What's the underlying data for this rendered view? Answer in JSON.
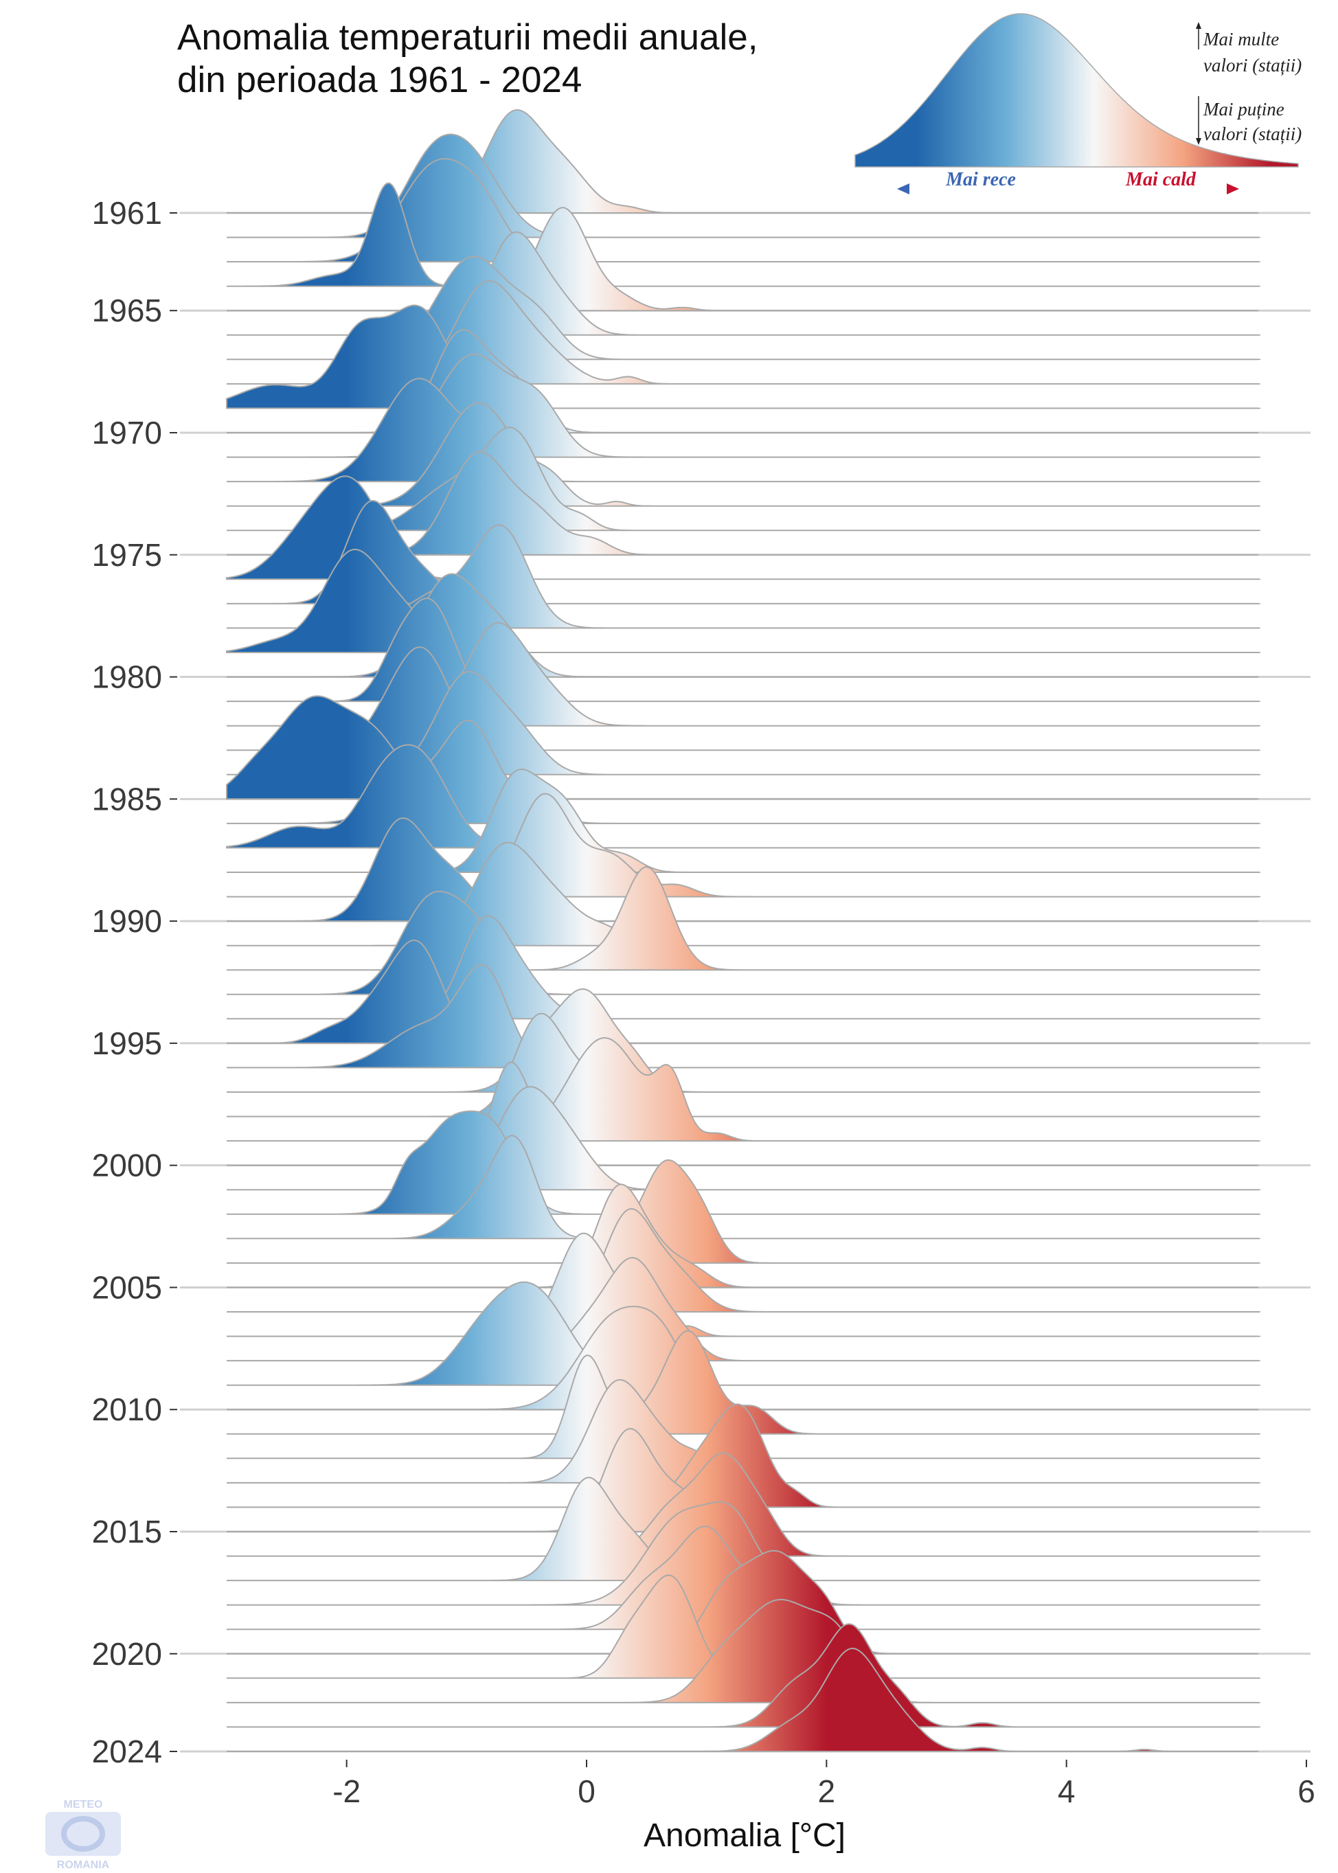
{
  "chart_data": {
    "type": "ridgeline",
    "title_lines": [
      "Anomalia temperaturii medii anuale,",
      "din perioada 1961 - 2024"
    ],
    "xlabel": "Anomalia [°C]",
    "ylabel": "",
    "xlim": [
      -3.0,
      6.0
    ],
    "x_ticks": [
      -2,
      0,
      2,
      4,
      6
    ],
    "y_tick_labels": [
      "1961",
      "1965",
      "1970",
      "1975",
      "1980",
      "1985",
      "1990",
      "1995",
      "2000",
      "2005",
      "2010",
      "2015",
      "2020",
      "2024"
    ],
    "y_tick_years": [
      1961,
      1965,
      1970,
      1975,
      1980,
      1985,
      1990,
      1995,
      2000,
      2005,
      2010,
      2015,
      2020,
      2024
    ],
    "color_scale": {
      "domain": [
        -2.0,
        -1.0,
        0.0,
        1.0,
        2.0
      ],
      "colors": [
        "#2166ac",
        "#6baed6",
        "#f7f7f7",
        "#f4a582",
        "#b2182b"
      ]
    },
    "grid": true,
    "series": [
      {
        "year": 1961,
        "peaks": [
          [
            -0.6,
            0.24,
            1.0
          ],
          [
            -0.15,
            0.2,
            0.35
          ],
          [
            0.35,
            0.12,
            0.05
          ]
        ]
      },
      {
        "year": 1962,
        "peaks": [
          [
            -1.0,
            0.27,
            0.85
          ],
          [
            -1.35,
            0.22,
            0.5
          ]
        ]
      },
      {
        "year": 1963,
        "peaks": [
          [
            -1.25,
            0.3,
            0.85
          ],
          [
            -0.85,
            0.2,
            0.3
          ]
        ]
      },
      {
        "year": 1964,
        "peaks": [
          [
            -1.65,
            0.15,
            0.95
          ],
          [
            -2.1,
            0.2,
            0.1
          ]
        ]
      },
      {
        "year": 1965,
        "peaks": [
          [
            -0.2,
            0.22,
            1.0
          ],
          [
            0.3,
            0.15,
            0.1
          ],
          [
            0.8,
            0.1,
            0.03
          ]
        ]
      },
      {
        "year": 1966,
        "peaks": [
          [
            -0.6,
            0.22,
            1.0
          ],
          [
            -0.2,
            0.18,
            0.25
          ]
        ]
      },
      {
        "year": 1967,
        "peaks": [
          [
            -0.95,
            0.3,
            0.9
          ],
          [
            -0.4,
            0.2,
            0.3
          ]
        ]
      },
      {
        "year": 1968,
        "peaks": [
          [
            -0.85,
            0.25,
            0.7
          ],
          [
            -0.4,
            0.25,
            0.25
          ],
          [
            0.35,
            0.1,
            0.05
          ]
        ]
      },
      {
        "year": 1969,
        "peaks": [
          [
            -1.4,
            0.25,
            0.85
          ],
          [
            -1.9,
            0.2,
            0.6
          ],
          [
            -2.6,
            0.3,
            0.2
          ]
        ]
      },
      {
        "year": 1970,
        "peaks": [
          [
            -1.05,
            0.22,
            0.85
          ],
          [
            -0.6,
            0.2,
            0.4
          ]
        ]
      },
      {
        "year": 1971,
        "peaks": [
          [
            -0.95,
            0.3,
            0.75
          ],
          [
            -0.4,
            0.2,
            0.35
          ]
        ]
      },
      {
        "year": 1972,
        "peaks": [
          [
            -1.4,
            0.3,
            0.9
          ],
          [
            -0.8,
            0.2,
            0.3
          ]
        ]
      },
      {
        "year": 1973,
        "peaks": [
          [
            -0.9,
            0.3,
            0.7
          ],
          [
            -0.3,
            0.15,
            0.15
          ],
          [
            0.25,
            0.08,
            0.03
          ]
        ]
      },
      {
        "year": 1974,
        "peaks": [
          [
            -0.6,
            0.23,
            0.9
          ],
          [
            -1.1,
            0.3,
            0.45
          ],
          [
            -0.05,
            0.12,
            0.12
          ]
        ]
      },
      {
        "year": 1975,
        "peaks": [
          [
            -0.9,
            0.25,
            0.85
          ],
          [
            -0.4,
            0.2,
            0.3
          ],
          [
            0.05,
            0.15,
            0.12
          ]
        ]
      },
      {
        "year": 1976,
        "peaks": [
          [
            -1.95,
            0.25,
            1.0
          ],
          [
            -2.35,
            0.25,
            0.45
          ]
        ]
      },
      {
        "year": 1977,
        "peaks": [
          [
            -1.8,
            0.2,
            1.0
          ],
          [
            -1.4,
            0.2,
            0.3
          ]
        ]
      },
      {
        "year": 1978,
        "peaks": [
          [
            -0.7,
            0.22,
            0.9
          ],
          [
            -1.2,
            0.3,
            0.35
          ]
        ]
      },
      {
        "year": 1979,
        "peaks": [
          [
            -1.95,
            0.25,
            1.0
          ],
          [
            -1.5,
            0.2,
            0.3
          ],
          [
            -2.6,
            0.2,
            0.1
          ]
        ]
      },
      {
        "year": 1980,
        "peaks": [
          [
            -1.15,
            0.25,
            0.9
          ],
          [
            -0.7,
            0.2,
            0.35
          ]
        ]
      },
      {
        "year": 1981,
        "peaks": [
          [
            -1.3,
            0.2,
            0.9
          ],
          [
            -1.6,
            0.15,
            0.3
          ]
        ]
      },
      {
        "year": 1982,
        "peaks": [
          [
            -0.75,
            0.25,
            0.85
          ],
          [
            -0.3,
            0.2,
            0.2
          ]
        ]
      },
      {
        "year": 1983,
        "peaks": [
          [
            -1.35,
            0.22,
            0.85
          ],
          [
            -1.65,
            0.2,
            0.25
          ]
        ]
      },
      {
        "year": 1984,
        "peaks": [
          [
            -1.0,
            0.25,
            0.9
          ],
          [
            -0.55,
            0.2,
            0.3
          ]
        ]
      },
      {
        "year": 1985,
        "peaks": [
          [
            -2.3,
            0.25,
            1.0
          ],
          [
            -1.8,
            0.25,
            0.7
          ],
          [
            -2.75,
            0.2,
            0.3
          ]
        ]
      },
      {
        "year": 1986,
        "peaks": [
          [
            -0.95,
            0.2,
            0.9
          ],
          [
            -1.35,
            0.3,
            0.5
          ],
          [
            -0.5,
            0.2,
            0.2
          ]
        ]
      },
      {
        "year": 1987,
        "peaks": [
          [
            -1.4,
            0.25,
            0.85
          ],
          [
            -1.75,
            0.2,
            0.4
          ],
          [
            -2.4,
            0.25,
            0.2
          ]
        ]
      },
      {
        "year": 1988,
        "peaks": [
          [
            -0.6,
            0.2,
            0.85
          ],
          [
            -0.2,
            0.2,
            0.6
          ],
          [
            0.3,
            0.15,
            0.15
          ]
        ]
      },
      {
        "year": 1989,
        "peaks": [
          [
            -0.35,
            0.22,
            0.9
          ],
          [
            0.2,
            0.2,
            0.35
          ],
          [
            0.75,
            0.15,
            0.1
          ]
        ]
      },
      {
        "year": 1990,
        "peaks": [
          [
            -1.55,
            0.22,
            1.0
          ],
          [
            -1.1,
            0.2,
            0.4
          ]
        ]
      },
      {
        "year": 1991,
        "peaks": [
          [
            -0.7,
            0.25,
            0.85
          ],
          [
            -0.25,
            0.25,
            0.35
          ],
          [
            0.2,
            0.15,
            0.1
          ]
        ]
      },
      {
        "year": 1992,
        "peaks": [
          [
            0.5,
            0.2,
            1.0
          ],
          [
            0.05,
            0.15,
            0.1
          ]
        ]
      },
      {
        "year": 1993,
        "peaks": [
          [
            -1.3,
            0.25,
            0.85
          ],
          [
            -0.9,
            0.2,
            0.45
          ]
        ]
      },
      {
        "year": 1994,
        "peaks": [
          [
            -0.85,
            0.2,
            0.9
          ],
          [
            -0.5,
            0.2,
            0.3
          ]
        ]
      },
      {
        "year": 1995,
        "peaks": [
          [
            -1.4,
            0.2,
            1.0
          ],
          [
            -1.75,
            0.2,
            0.4
          ],
          [
            -2.15,
            0.15,
            0.12
          ]
        ]
      },
      {
        "year": 1996,
        "peaks": [
          [
            -0.85,
            0.2,
            1.0
          ],
          [
            -1.35,
            0.3,
            0.45
          ]
        ]
      },
      {
        "year": 1997,
        "peaks": [
          [
            0.0,
            0.22,
            0.8
          ],
          [
            -0.4,
            0.2,
            0.35
          ],
          [
            0.4,
            0.15,
            0.2
          ]
        ]
      },
      {
        "year": 1998,
        "peaks": [
          [
            -0.4,
            0.2,
            0.85
          ],
          [
            0.0,
            0.2,
            0.3
          ]
        ]
      },
      {
        "year": 1999,
        "peaks": [
          [
            0.15,
            0.3,
            0.75
          ],
          [
            0.7,
            0.12,
            0.4
          ],
          [
            1.1,
            0.1,
            0.05
          ]
        ]
      },
      {
        "year": 2000,
        "peaks": [
          [
            -0.65,
            0.15,
            1.0
          ],
          [
            -0.4,
            0.15,
            0.3
          ]
        ]
      },
      {
        "year": 2001,
        "peaks": [
          [
            -0.5,
            0.25,
            0.85
          ],
          [
            -0.1,
            0.2,
            0.25
          ]
        ]
      },
      {
        "year": 2002,
        "peaks": [
          [
            -1.15,
            0.25,
            0.8
          ],
          [
            -0.75,
            0.2,
            0.6
          ],
          [
            -1.5,
            0.1,
            0.2
          ]
        ]
      },
      {
        "year": 2003,
        "peaks": [
          [
            -0.6,
            0.18,
            1.0
          ],
          [
            -0.95,
            0.2,
            0.3
          ]
        ]
      },
      {
        "year": 2004,
        "peaks": [
          [
            0.65,
            0.18,
            1.0
          ],
          [
            0.95,
            0.15,
            0.45
          ],
          [
            0.3,
            0.15,
            0.2
          ]
        ]
      },
      {
        "year": 2005,
        "peaks": [
          [
            0.25,
            0.18,
            0.95
          ],
          [
            0.55,
            0.2,
            0.4
          ],
          [
            0.9,
            0.15,
            0.15
          ]
        ]
      },
      {
        "year": 2006,
        "peaks": [
          [
            0.35,
            0.2,
            0.95
          ],
          [
            0.75,
            0.2,
            0.35
          ]
        ]
      },
      {
        "year": 2007,
        "peaks": [
          [
            -0.05,
            0.2,
            1.0
          ],
          [
            0.3,
            0.2,
            0.3
          ],
          [
            0.85,
            0.1,
            0.1
          ]
        ]
      },
      {
        "year": 2008,
        "peaks": [
          [
            0.4,
            0.22,
            1.0
          ],
          [
            0.0,
            0.2,
            0.3
          ],
          [
            0.8,
            0.15,
            0.2
          ]
        ]
      },
      {
        "year": 2009,
        "peaks": [
          [
            -0.45,
            0.3,
            0.75
          ],
          [
            -0.9,
            0.25,
            0.3
          ]
        ]
      },
      {
        "year": 2010,
        "peaks": [
          [
            0.25,
            0.3,
            0.8
          ],
          [
            0.65,
            0.2,
            0.4
          ]
        ]
      },
      {
        "year": 2011,
        "peaks": [
          [
            0.85,
            0.2,
            1.0
          ],
          [
            1.4,
            0.15,
            0.25
          ],
          [
            0.4,
            0.2,
            0.15
          ]
        ]
      },
      {
        "year": 2012,
        "peaks": [
          [
            0.0,
            0.15,
            0.9
          ],
          [
            0.35,
            0.15,
            0.3
          ]
        ]
      },
      {
        "year": 2013,
        "peaks": [
          [
            0.25,
            0.22,
            0.85
          ],
          [
            0.65,
            0.2,
            0.3
          ],
          [
            0.95,
            0.12,
            0.15
          ]
        ]
      },
      {
        "year": 2014,
        "peaks": [
          [
            1.3,
            0.2,
            1.0
          ],
          [
            0.95,
            0.2,
            0.45
          ],
          [
            1.75,
            0.1,
            0.1
          ]
        ]
      },
      {
        "year": 2015,
        "peaks": [
          [
            0.35,
            0.2,
            0.85
          ],
          [
            0.8,
            0.2,
            0.3
          ]
        ]
      },
      {
        "year": 2016,
        "peaks": [
          [
            1.15,
            0.22,
            0.9
          ],
          [
            0.7,
            0.2,
            0.4
          ],
          [
            1.5,
            0.15,
            0.2
          ]
        ]
      },
      {
        "year": 2017,
        "peaks": [
          [
            0.0,
            0.2,
            0.85
          ],
          [
            0.4,
            0.18,
            0.3
          ]
        ]
      },
      {
        "year": 2018,
        "peaks": [
          [
            0.8,
            0.3,
            0.75
          ],
          [
            1.25,
            0.2,
            0.55
          ],
          [
            1.7,
            0.15,
            0.2
          ]
        ]
      },
      {
        "year": 2019,
        "peaks": [
          [
            1.0,
            0.25,
            0.8
          ],
          [
            0.5,
            0.2,
            0.3
          ],
          [
            1.5,
            0.15,
            0.25
          ]
        ]
      },
      {
        "year": 2020,
        "peaks": [
          [
            1.6,
            0.25,
            0.8
          ],
          [
            1.15,
            0.2,
            0.45
          ],
          [
            2.0,
            0.15,
            0.25
          ]
        ]
      },
      {
        "year": 2021,
        "peaks": [
          [
            0.7,
            0.2,
            0.9
          ],
          [
            0.35,
            0.15,
            0.3
          ]
        ]
      },
      {
        "year": 2022,
        "peaks": [
          [
            1.6,
            0.3,
            0.85
          ],
          [
            2.1,
            0.2,
            0.45
          ],
          [
            1.1,
            0.2,
            0.25
          ]
        ]
      },
      {
        "year": 2023,
        "peaks": [
          [
            2.2,
            0.2,
            0.95
          ],
          [
            1.75,
            0.2,
            0.4
          ],
          [
            2.6,
            0.15,
            0.25
          ],
          [
            3.3,
            0.1,
            0.04
          ]
        ]
      },
      {
        "year": 2024,
        "peaks": [
          [
            2.2,
            0.22,
            1.0
          ],
          [
            2.6,
            0.2,
            0.3
          ],
          [
            1.7,
            0.2,
            0.25
          ],
          [
            3.3,
            0.1,
            0.04
          ],
          [
            4.65,
            0.08,
            0.02
          ]
        ]
      }
    ]
  },
  "legend": {
    "more_values": [
      "Mai multe",
      "valori (stații)"
    ],
    "fewer_values": [
      "Mai puține",
      "valori (stații)"
    ],
    "colder_label": "Mai rece",
    "warmer_label": "Mai cald",
    "colder_color": "#3b66b3",
    "warmer_color": "#d23a2e"
  },
  "logo": {
    "text_top": "METEO",
    "text_bottom": "ROMANIA"
  }
}
